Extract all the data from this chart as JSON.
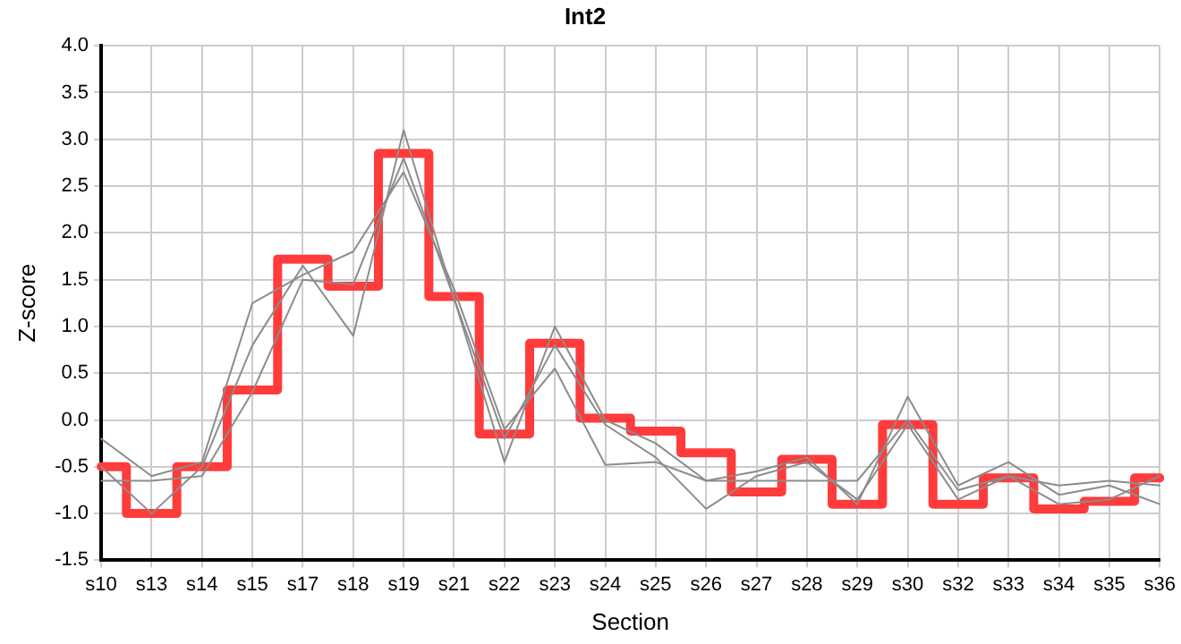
{
  "chart_data": {
    "type": "line",
    "title": "Int2",
    "xlabel": "Section",
    "ylabel": "Z-score",
    "categories": [
      "s10",
      "s13",
      "s14",
      "s15",
      "s17",
      "s18",
      "s19",
      "s21",
      "s22",
      "s23",
      "s24",
      "s25",
      "s26",
      "s27",
      "s28",
      "s29",
      "s30",
      "s32",
      "s33",
      "s34",
      "s35",
      "s36"
    ],
    "series": [
      {
        "type": "line",
        "color": "#8c8c8c",
        "values": [
          -0.2,
          -0.6,
          -0.45,
          1.25,
          1.55,
          1.8,
          2.65,
          1.4,
          -0.1,
          0.55,
          -0.48,
          -0.45,
          -0.65,
          -0.65,
          -0.65,
          -0.65,
          0.0,
          -0.75,
          -0.6,
          -0.7,
          -0.65,
          -0.7
        ]
      },
      {
        "type": "line",
        "color": "#8c8c8c",
        "values": [
          -0.5,
          -1.0,
          -0.5,
          0.8,
          1.65,
          0.9,
          3.1,
          1.3,
          -0.45,
          1.0,
          0.0,
          -0.25,
          -0.65,
          -0.55,
          -0.4,
          -0.9,
          0.25,
          -0.7,
          -0.45,
          -0.8,
          -0.7,
          -0.9
        ]
      },
      {
        "type": "line",
        "color": "#8c8c8c",
        "values": [
          -0.65,
          -0.65,
          -0.6,
          0.3,
          1.5,
          1.45,
          2.8,
          1.3,
          -0.2,
          0.8,
          -0.05,
          -0.4,
          -0.95,
          -0.6,
          -0.45,
          -0.85,
          -0.05,
          -0.85,
          -0.6,
          -0.9,
          -0.85,
          -0.6
        ]
      },
      {
        "type": "step",
        "color": "#ff3b3b",
        "values": [
          -0.5,
          -1.0,
          -0.5,
          0.32,
          1.72,
          1.43,
          2.85,
          1.32,
          -0.15,
          0.82,
          0.02,
          -0.12,
          -0.35,
          -0.77,
          -0.42,
          -0.9,
          -0.05,
          -0.9,
          -0.62,
          -0.95,
          -0.87,
          -0.62
        ]
      }
    ],
    "ylim": [
      -1.5,
      4.0
    ],
    "yticks": [
      {
        "value": -1.5,
        "label": "-1.5"
      },
      {
        "value": -1,
        "label": "-1.0"
      },
      {
        "value": -0.5,
        "label": "-0.5"
      },
      {
        "value": 0,
        "label": "0.0"
      },
      {
        "value": 0.5,
        "label": "0.5"
      },
      {
        "value": 1,
        "label": "1.0"
      },
      {
        "value": 1.5,
        "label": "1.5"
      },
      {
        "value": 2,
        "label": "2.0"
      },
      {
        "value": 2.5,
        "label": "2.5"
      },
      {
        "value": 3,
        "label": "3.0"
      },
      {
        "value": 3.5,
        "label": "3.5"
      },
      {
        "value": 4,
        "label": "4.0"
      }
    ],
    "grid": true,
    "legend": false,
    "marker": "none",
    "line_style": "solid"
  }
}
